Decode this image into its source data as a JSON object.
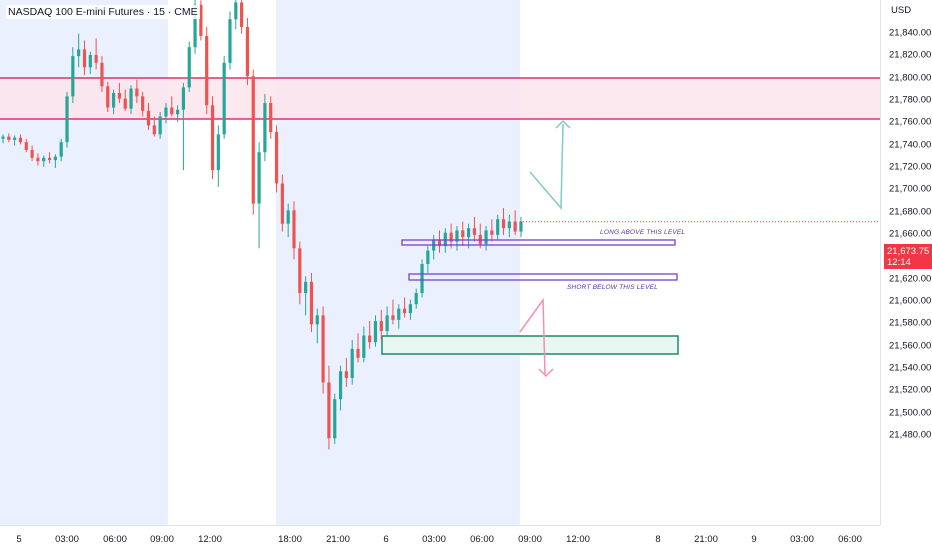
{
  "symbol_title": "NASDAQ 100 E-mini Futures · 15 · CME",
  "price_axis": {
    "currency": "USD",
    "ticks": [
      "21,840.00",
      "21,820.00",
      "21,800.00",
      "21,780.00",
      "21,760.00",
      "21,740.00",
      "21,720.00",
      "21,700.00",
      "21,680.00",
      "21,660.00",
      "21,640.00",
      "21,620.00",
      "21,600.00",
      "21,580.00",
      "21,560.00",
      "21,540.00",
      "21,520.00",
      "21,500.00",
      "21,480.00"
    ],
    "current_price": "21,673.75",
    "countdown": "12:14"
  },
  "time_axis": {
    "labels": [
      "5",
      "03:00",
      "06:00",
      "09:00",
      "12:00",
      "18:00",
      "21:00",
      "6",
      "03:00",
      "06:00",
      "09:00",
      "12:00",
      "8",
      "21:00",
      "9",
      "03:00",
      "06:00"
    ]
  },
  "annotations": {
    "long_label": "LONG ABOVE THIS LEVEL",
    "short_label": "SHORT BELOW THIS LEVEL"
  },
  "colors": {
    "bull": "#26a69a",
    "bear": "#ef5350",
    "resistance_line": "#e0316d",
    "resistance_fill": "#fce4ec",
    "session_shade": "#eaf0fe",
    "level_box": "#7b3fd0",
    "demand_box": "#1b8a6b",
    "long_arrow": "#80cbc4",
    "short_arrow": "#f48fb1",
    "price_tag": "#f23645"
  },
  "chart_data": {
    "type": "candlestick",
    "price_range": [
      21470,
      21865
    ],
    "zones": [
      {
        "name": "resistance",
        "from": 21774,
        "to": 21806
      },
      {
        "name": "long-level",
        "from": 21676,
        "to": 21680
      },
      {
        "name": "short-level",
        "from": 21654,
        "to": 21659
      },
      {
        "name": "demand",
        "from": 21595,
        "to": 21609
      }
    ],
    "projections": [
      {
        "name": "long-path",
        "points": [
          [
            21740
          ],
          [
            21707
          ],
          [
            21772
          ]
        ]
      },
      {
        "name": "short-path",
        "points": [
          [
            21612
          ],
          [
            21646
          ],
          [
            21577
          ]
        ]
      }
    ],
    "candles": [
      [
        21748,
        21752,
        21744,
        21750
      ],
      [
        21750,
        21753,
        21745,
        21747
      ],
      [
        21747,
        21751,
        21742,
        21749
      ],
      [
        21749,
        21752,
        21743,
        21745
      ],
      [
        21745,
        21748,
        21736,
        21738
      ],
      [
        21738,
        21742,
        21728,
        21731
      ],
      [
        21731,
        21735,
        21724,
        21728
      ],
      [
        21728,
        21733,
        21723,
        21731
      ],
      [
        21731,
        21736,
        21726,
        21729
      ],
      [
        21729,
        21734,
        21722,
        21732
      ],
      [
        21732,
        21748,
        21728,
        21745
      ],
      [
        21745,
        21790,
        21740,
        21786
      ],
      [
        21786,
        21830,
        21780,
        21822
      ],
      [
        21822,
        21842,
        21812,
        21828
      ],
      [
        21828,
        21836,
        21805,
        21812
      ],
      [
        21812,
        21826,
        21806,
        21823
      ],
      [
        21823,
        21838,
        21810,
        21816
      ],
      [
        21816,
        21822,
        21790,
        21795
      ],
      [
        21795,
        21799,
        21772,
        21776
      ],
      [
        21776,
        21792,
        21770,
        21789
      ],
      [
        21789,
        21798,
        21780,
        21784
      ],
      [
        21784,
        21792,
        21773,
        21775
      ],
      [
        21775,
        21796,
        21770,
        21793
      ],
      [
        21793,
        21801,
        21780,
        21786
      ],
      [
        21786,
        21790,
        21768,
        21773
      ],
      [
        21773,
        21780,
        21756,
        21760
      ],
      [
        21760,
        21768,
        21750,
        21752
      ],
      [
        21752,
        21772,
        21748,
        21768
      ],
      [
        21768,
        21780,
        21762,
        21776
      ],
      [
        21776,
        21786,
        21768,
        21770
      ],
      [
        21770,
        21778,
        21763,
        21774
      ],
      [
        21774,
        21798,
        21720,
        21794
      ],
      [
        21794,
        21835,
        21790,
        21830
      ],
      [
        21830,
        21878,
        21824,
        21868
      ],
      [
        21868,
        21872,
        21836,
        21840
      ],
      [
        21840,
        21848,
        21770,
        21778
      ],
      [
        21778,
        21786,
        21712,
        21720
      ],
      [
        21720,
        21760,
        21705,
        21752
      ],
      [
        21752,
        21822,
        21748,
        21816
      ],
      [
        21816,
        21862,
        21810,
        21855
      ],
      [
        21855,
        21880,
        21846,
        21870
      ],
      [
        21870,
        21878,
        21842,
        21848
      ],
      [
        21848,
        21856,
        21796,
        21804
      ],
      [
        21804,
        21810,
        21680,
        21690
      ],
      [
        21690,
        21745,
        21650,
        21736
      ],
      [
        21736,
        21788,
        21728,
        21780
      ],
      [
        21780,
        21786,
        21748,
        21754
      ],
      [
        21754,
        21760,
        21700,
        21708
      ],
      [
        21708,
        21716,
        21665,
        21672
      ],
      [
        21672,
        21690,
        21660,
        21684
      ],
      [
        21684,
        21692,
        21640,
        21650
      ],
      [
        21650,
        21656,
        21600,
        21610
      ],
      [
        21610,
        21625,
        21590,
        21620
      ],
      [
        21620,
        21628,
        21575,
        21582
      ],
      [
        21582,
        21596,
        21565,
        21590
      ],
      [
        21590,
        21598,
        21520,
        21530
      ],
      [
        21530,
        21545,
        21470,
        21480
      ],
      [
        21480,
        21520,
        21475,
        21515
      ],
      [
        21515,
        21545,
        21505,
        21540
      ],
      [
        21540,
        21552,
        21526,
        21534
      ],
      [
        21534,
        21568,
        21528,
        21560
      ],
      [
        21560,
        21574,
        21548,
        21552
      ],
      [
        21552,
        21580,
        21548,
        21572
      ],
      [
        21572,
        21585,
        21560,
        21566
      ],
      [
        21566,
        21590,
        21562,
        21585
      ],
      [
        21585,
        21595,
        21568,
        21576
      ],
      [
        21576,
        21598,
        21572,
        21590
      ],
      [
        21590,
        21604,
        21582,
        21586
      ],
      [
        21586,
        21600,
        21578,
        21596
      ],
      [
        21596,
        21606,
        21588,
        21592
      ],
      [
        21592,
        21604,
        21586,
        21600
      ],
      [
        21600,
        21614,
        21596,
        21610
      ],
      [
        21610,
        21640,
        21606,
        21636
      ],
      [
        21636,
        21652,
        21628,
        21648
      ],
      [
        21648,
        21662,
        21640,
        21658
      ],
      [
        21658,
        21666,
        21646,
        21652
      ],
      [
        21652,
        21668,
        21646,
        21664
      ],
      [
        21664,
        21672,
        21650,
        21656
      ],
      [
        21656,
        21670,
        21648,
        21666
      ],
      [
        21666,
        21674,
        21652,
        21660
      ],
      [
        21660,
        21672,
        21650,
        21668
      ],
      [
        21668,
        21678,
        21656,
        21662
      ],
      [
        21662,
        21672,
        21650,
        21654
      ],
      [
        21654,
        21670,
        21648,
        21666
      ],
      [
        21666,
        21676,
        21656,
        21662
      ],
      [
        21662,
        21680,
        21658,
        21676
      ],
      [
        21676,
        21686,
        21662,
        21668
      ],
      [
        21668,
        21680,
        21660,
        21674
      ],
      [
        21674,
        21684,
        21662,
        21665
      ],
      [
        21665,
        21678,
        21660,
        21674
      ]
    ]
  }
}
